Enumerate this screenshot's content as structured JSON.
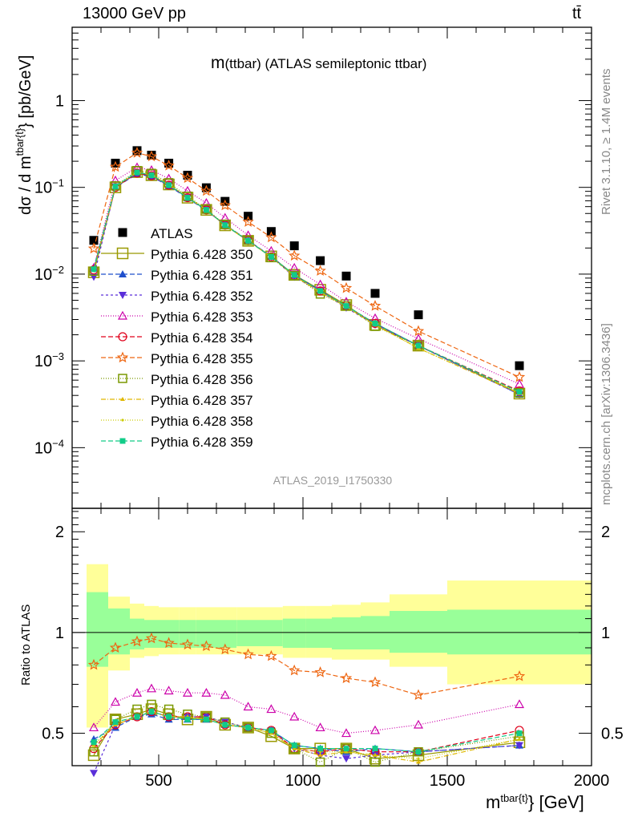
{
  "header": {
    "left": "13000 GeV pp",
    "right": "tt̄"
  },
  "side_labels": {
    "events": "Rivet 3.1.10, ≥ 1.4M events",
    "source": "mcplots.cern.ch [arXiv:1306.3436]"
  },
  "colors": {
    "band_inner": "#99ff99",
    "band_outer": "#ffff99",
    "ATLAS": "#000000",
    "350": "#999900",
    "351": "#1f4fcc",
    "352": "#5a2fd9",
    "353": "#cc00aa",
    "354": "#e0001a",
    "355": "#ee6611",
    "356": "#7a9900",
    "357": "#e0b800",
    "358": "#cccc00",
    "359": "#11cc88"
  },
  "chart_data": [
    {
      "type": "scatter",
      "title": "m(ttbar) (ATLAS semileptonic ttbar)",
      "watermark": "ATLAS_2019_I1750330",
      "ylabel": "dσ / d m^{tbar{t}} [pb/GeV]",
      "yscale": "log",
      "ylim": [
        2e-05,
        7
      ],
      "xlim": [
        200,
        2000
      ],
      "yticks": [
        {
          "v": 0.0001,
          "label": "10",
          "exp": "−4"
        },
        {
          "v": 0.001,
          "label": "10",
          "exp": "−3"
        },
        {
          "v": 0.01,
          "label": "10",
          "exp": "−2"
        },
        {
          "v": 0.1,
          "label": "10",
          "exp": "−1"
        },
        {
          "v": 1,
          "label": "1",
          "exp": ""
        }
      ],
      "legend_position": "center-left",
      "x": [
        275,
        350,
        425,
        475,
        535,
        600,
        665,
        730,
        810,
        890,
        970,
        1060,
        1150,
        1250,
        1400,
        1750
      ],
      "series": [
        {
          "name": "ATLAS",
          "marker": "square",
          "dash": "none",
          "values": [
            0.0245,
            0.19,
            0.265,
            0.235,
            0.19,
            0.138,
            0.099,
            0.069,
            0.0465,
            0.031,
            0.0212,
            0.0143,
            0.0095,
            0.006,
            0.0034,
            0.00088
          ]
        },
        {
          "name": "Pythia 6.428 350",
          "marker": "open-square-big",
          "dash": "solid",
          "values": [
            0.0105,
            0.1,
            0.15,
            0.138,
            0.108,
            0.076,
            0.055,
            0.0365,
            0.0242,
            0.016,
            0.0098,
            0.0066,
            0.0044,
            0.0026,
            0.0015,
            0.00042
          ]
        },
        {
          "name": "Pythia 6.428 351",
          "marker": "triangle-up",
          "dash": "6,3",
          "values": [
            0.0118,
            0.1,
            0.143,
            0.133,
            0.104,
            0.075,
            0.054,
            0.037,
            0.0245,
            0.016,
            0.0097,
            0.0065,
            0.0042,
            0.0027,
            0.0015,
            0.00041
          ]
        },
        {
          "name": "Pythia 6.428 352",
          "marker": "triangle-down",
          "dash": "3,3",
          "values": [
            0.0093,
            0.102,
            0.145,
            0.135,
            0.105,
            0.076,
            0.055,
            0.0368,
            0.0242,
            0.0158,
            0.0093,
            0.0063,
            0.0041,
            0.0026,
            0.0015,
            0.00041
          ]
        },
        {
          "name": "Pythia 6.428 353",
          "marker": "open-triangle",
          "dash": "1,2",
          "values": [
            0.0118,
            0.12,
            0.17,
            0.158,
            0.126,
            0.091,
            0.066,
            0.0445,
            0.028,
            0.0185,
            0.0118,
            0.0076,
            0.0048,
            0.0031,
            0.0018,
            0.00054
          ]
        },
        {
          "name": "Pythia 6.428 354",
          "marker": "open-circle",
          "dash": "6,3",
          "values": [
            0.0112,
            0.1,
            0.146,
            0.136,
            0.106,
            0.076,
            0.055,
            0.0367,
            0.0243,
            0.0158,
            0.0096,
            0.0064,
            0.0043,
            0.0027,
            0.0015,
            0.00045
          ]
        },
        {
          "name": "Pythia 6.428 355",
          "marker": "open-star",
          "dash": "6,3",
          "values": [
            0.0197,
            0.172,
            0.25,
            0.227,
            0.178,
            0.128,
            0.091,
            0.062,
            0.04,
            0.0265,
            0.0163,
            0.0109,
            0.0069,
            0.0043,
            0.0022,
            0.00065
          ]
        },
        {
          "name": "Pythia 6.428 356",
          "marker": "open-square",
          "dash": "1,2",
          "values": [
            0.0108,
            0.104,
            0.156,
            0.145,
            0.113,
            0.079,
            0.056,
            0.0372,
            0.0245,
            0.0155,
            0.0096,
            0.0059,
            0.0043,
            0.0025,
            0.0015,
            0.00043
          ]
        },
        {
          "name": "Pythia 6.428 357",
          "marker": "small-tri",
          "dash": "6,2,1,2",
          "values": [
            0.0112,
            0.102,
            0.149,
            0.139,
            0.107,
            0.077,
            0.055,
            0.0366,
            0.0241,
            0.0158,
            0.0095,
            0.0062,
            0.0042,
            0.0026,
            0.0014,
            0.00042
          ]
        },
        {
          "name": "Pythia 6.428 358",
          "marker": "dot",
          "dash": "1,2",
          "values": [
            0.0113,
            0.103,
            0.149,
            0.138,
            0.107,
            0.077,
            0.055,
            0.0367,
            0.0241,
            0.0158,
            0.0095,
            0.0063,
            0.0042,
            0.0026,
            0.0014,
            0.00043
          ]
        },
        {
          "name": "Pythia 6.428 359",
          "marker": "small-square",
          "dash": "6,3",
          "values": [
            0.0114,
            0.103,
            0.149,
            0.138,
            0.106,
            0.076,
            0.055,
            0.0367,
            0.0243,
            0.0158,
            0.0098,
            0.0064,
            0.0043,
            0.0027,
            0.0015,
            0.00044
          ]
        }
      ]
    },
    {
      "type": "scatter",
      "ylabel": "Ratio to ATLAS",
      "xlabel": "m^{tbar{t}} [GeV]",
      "yscale": "log",
      "ylim": [
        0.4,
        2.35
      ],
      "xlim": [
        200,
        2000
      ],
      "xticks": [
        500,
        1000,
        1500,
        2000
      ],
      "yticks": [
        {
          "v": 0.5,
          "label": "0.5"
        },
        {
          "v": 1,
          "label": "1"
        },
        {
          "v": 2,
          "label": "2"
        }
      ],
      "reference": 1,
      "band_edges": [
        250,
        325,
        400,
        450,
        500,
        570,
        630,
        700,
        770,
        850,
        930,
        1010,
        1100,
        1200,
        1300,
        1500,
        2000
      ],
      "band_inner": [
        [
          0.79,
          1.32
        ],
        [
          0.86,
          1.18
        ],
        [
          0.89,
          1.1
        ],
        [
          0.9,
          1.09
        ],
        [
          0.9,
          1.09
        ],
        [
          0.9,
          1.09
        ],
        [
          0.9,
          1.09
        ],
        [
          0.9,
          1.09
        ],
        [
          0.91,
          1.09
        ],
        [
          0.91,
          1.09
        ],
        [
          0.9,
          1.1
        ],
        [
          0.9,
          1.1
        ],
        [
          0.89,
          1.11
        ],
        [
          0.89,
          1.12
        ],
        [
          0.87,
          1.16
        ],
        [
          0.86,
          1.17
        ]
      ],
      "band_outer": [
        [
          0.52,
          1.6
        ],
        [
          0.77,
          1.28
        ],
        [
          0.84,
          1.22
        ],
        [
          0.85,
          1.2
        ],
        [
          0.86,
          1.19
        ],
        [
          0.86,
          1.19
        ],
        [
          0.86,
          1.19
        ],
        [
          0.86,
          1.19
        ],
        [
          0.86,
          1.19
        ],
        [
          0.86,
          1.19
        ],
        [
          0.84,
          1.2
        ],
        [
          0.84,
          1.2
        ],
        [
          0.83,
          1.21
        ],
        [
          0.83,
          1.23
        ],
        [
          0.79,
          1.3
        ],
        [
          0.7,
          1.43
        ]
      ],
      "x": [
        275,
        350,
        425,
        475,
        535,
        600,
        665,
        730,
        810,
        890,
        970,
        1060,
        1150,
        1250,
        1400,
        1750
      ],
      "series": [
        {
          "name": "Pythia 6.428 350",
          "values": [
            0.43,
            0.55,
            0.57,
            0.59,
            0.57,
            0.55,
            0.56,
            0.53,
            0.52,
            0.49,
            0.45,
            0.45,
            0.45,
            0.42,
            0.43,
            0.47
          ]
        },
        {
          "name": "Pythia 6.428 351",
          "values": [
            0.48,
            0.52,
            0.56,
            0.57,
            0.55,
            0.55,
            0.55,
            0.53,
            0.52,
            0.51,
            0.46,
            0.45,
            0.44,
            0.45,
            0.44,
            0.46
          ]
        },
        {
          "name": "Pythia 6.428 352",
          "values": [
            0.38,
            0.53,
            0.56,
            0.58,
            0.56,
            0.56,
            0.56,
            0.54,
            0.52,
            0.51,
            0.45,
            0.43,
            0.42,
            0.43,
            0.44,
            0.46
          ]
        },
        {
          "name": "Pythia 6.428 353",
          "values": [
            0.52,
            0.62,
            0.66,
            0.68,
            0.67,
            0.66,
            0.66,
            0.65,
            0.6,
            0.59,
            0.56,
            0.52,
            0.5,
            0.51,
            0.53,
            0.61
          ]
        },
        {
          "name": "Pythia 6.428 354",
          "values": [
            0.45,
            0.53,
            0.56,
            0.58,
            0.56,
            0.56,
            0.56,
            0.53,
            0.52,
            0.51,
            0.45,
            0.44,
            0.45,
            0.44,
            0.44,
            0.51
          ]
        },
        {
          "name": "Pythia 6.428 355",
          "values": [
            0.8,
            0.9,
            0.94,
            0.96,
            0.93,
            0.92,
            0.91,
            0.89,
            0.86,
            0.85,
            0.77,
            0.76,
            0.73,
            0.71,
            0.65,
            0.74
          ]
        },
        {
          "name": "Pythia 6.428 356",
          "values": [
            0.44,
            0.55,
            0.59,
            0.61,
            0.59,
            0.57,
            0.56,
            0.54,
            0.52,
            0.5,
            0.45,
            0.41,
            0.45,
            0.41,
            0.44,
            0.49
          ]
        },
        {
          "name": "Pythia 6.428 357",
          "values": [
            0.46,
            0.53,
            0.56,
            0.58,
            0.56,
            0.56,
            0.55,
            0.53,
            0.52,
            0.5,
            0.45,
            0.43,
            0.44,
            0.43,
            0.41,
            0.48
          ]
        },
        {
          "name": "Pythia 6.428 358",
          "values": [
            0.46,
            0.54,
            0.56,
            0.58,
            0.56,
            0.56,
            0.55,
            0.53,
            0.52,
            0.5,
            0.45,
            0.44,
            0.44,
            0.43,
            0.42,
            0.48
          ]
        },
        {
          "name": "Pythia 6.428 359",
          "values": [
            0.47,
            0.54,
            0.56,
            0.58,
            0.56,
            0.55,
            0.55,
            0.53,
            0.52,
            0.51,
            0.46,
            0.45,
            0.45,
            0.45,
            0.44,
            0.5
          ]
        }
      ]
    }
  ]
}
